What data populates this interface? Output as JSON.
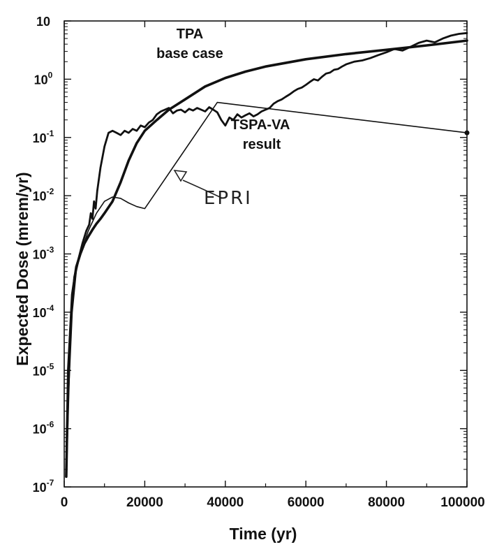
{
  "chart_data": {
    "type": "line",
    "title": "",
    "xlabel": "Time (yr)",
    "ylabel": "Expected Dose (mrem/yr)",
    "x_scale": "linear",
    "y_scale": "log",
    "xlim": [
      0,
      100000
    ],
    "ylim": [
      1e-07,
      10
    ],
    "x_ticks": [
      {
        "value": 0,
        "label": "0"
      },
      {
        "value": 20000,
        "label": "20000"
      },
      {
        "value": 40000,
        "label": "40000"
      },
      {
        "value": 60000,
        "label": "60000"
      },
      {
        "value": 80000,
        "label": "80000"
      },
      {
        "value": 100000,
        "label": "100000"
      }
    ],
    "y_ticks": [
      {
        "value": 1e-07,
        "base": "10",
        "exp": "-7"
      },
      {
        "value": 1e-06,
        "base": "10",
        "exp": "-6"
      },
      {
        "value": 1e-05,
        "base": "10",
        "exp": "-5"
      },
      {
        "value": 0.0001,
        "base": "10",
        "exp": "-4"
      },
      {
        "value": 0.001,
        "base": "10",
        "exp": "-3"
      },
      {
        "value": 0.01,
        "base": "10",
        "exp": "-2"
      },
      {
        "value": 0.1,
        "base": "10",
        "exp": "-1"
      },
      {
        "value": 1,
        "base": "10",
        "exp": "0"
      },
      {
        "value": 10,
        "base": "10",
        "exp": ""
      }
    ],
    "grid": false,
    "series": [
      {
        "name": "TPA base case",
        "color": "#111111",
        "x": [
          500,
          1000,
          2000,
          3000,
          4000,
          5000,
          6000,
          7000,
          8000,
          9000,
          10000,
          12000,
          14000,
          16000,
          18000,
          20000,
          23000,
          26000,
          30000,
          35000,
          40000,
          45000,
          50000,
          60000,
          70000,
          80000,
          90000,
          100000
        ],
        "y": [
          1.5e-07,
          1e-05,
          0.0002,
          0.0006,
          0.001,
          0.0015,
          0.002,
          0.0026,
          0.0033,
          0.004,
          0.005,
          0.008,
          0.017,
          0.04,
          0.08,
          0.13,
          0.2,
          0.3,
          0.45,
          0.75,
          1.05,
          1.35,
          1.65,
          2.2,
          2.7,
          3.2,
          3.8,
          4.6
        ]
      },
      {
        "name": "TSPA-VA result",
        "color": "#111111",
        "x": [
          500,
          1500,
          2500,
          3500,
          4500,
          5500,
          6200,
          6600,
          7000,
          7400,
          7800,
          8200,
          9000,
          10000,
          11000,
          12000,
          13000,
          14000,
          15000,
          16000,
          17000,
          18000,
          19000,
          20000,
          21000,
          22000,
          23000,
          24000,
          25000,
          26000,
          27000,
          28000,
          29000,
          30000,
          31000,
          32000,
          33000,
          34000,
          35000,
          36000,
          37000,
          38000,
          39000,
          40000,
          41000,
          42000,
          43000,
          44000,
          45000,
          46000,
          47000,
          48000,
          49000,
          50000,
          51000,
          52000,
          53000,
          54000,
          55000,
          56000,
          57000,
          58000,
          59000,
          60000,
          61000,
          62000,
          63000,
          64000,
          65000,
          66000,
          67000,
          68000,
          69000,
          70000,
          72000,
          74000,
          76000,
          78000,
          80000,
          82000,
          84000,
          86000,
          88000,
          90000,
          92000,
          94000,
          96000,
          98000,
          100000
        ],
        "y": [
          2e-07,
          5e-05,
          0.0004,
          0.0008,
          0.0015,
          0.0025,
          0.0032,
          0.005,
          0.004,
          0.008,
          0.006,
          0.012,
          0.03,
          0.07,
          0.12,
          0.13,
          0.12,
          0.11,
          0.13,
          0.12,
          0.14,
          0.13,
          0.16,
          0.15,
          0.18,
          0.2,
          0.25,
          0.28,
          0.3,
          0.32,
          0.26,
          0.29,
          0.3,
          0.27,
          0.31,
          0.29,
          0.32,
          0.3,
          0.28,
          0.33,
          0.3,
          0.27,
          0.2,
          0.16,
          0.22,
          0.2,
          0.25,
          0.22,
          0.24,
          0.26,
          0.23,
          0.25,
          0.28,
          0.3,
          0.32,
          0.38,
          0.42,
          0.45,
          0.5,
          0.55,
          0.62,
          0.68,
          0.72,
          0.8,
          0.9,
          1.0,
          0.95,
          1.1,
          1.25,
          1.3,
          1.45,
          1.5,
          1.65,
          1.8,
          2.0,
          2.1,
          2.3,
          2.6,
          2.9,
          3.3,
          3.1,
          3.6,
          4.2,
          4.6,
          4.3,
          5.0,
          5.6,
          6.0,
          6.2
        ]
      },
      {
        "name": "EPRI",
        "color": "#111111",
        "x": [
          500,
          1000,
          2000,
          3000,
          4000,
          6000,
          8000,
          10000,
          12000,
          14000,
          16000,
          18000,
          20000,
          38000,
          100000
        ],
        "y": [
          2e-07,
          3e-06,
          0.0001,
          0.0005,
          0.001,
          0.0025,
          0.005,
          0.008,
          0.0095,
          0.009,
          0.0075,
          0.0065,
          0.006,
          0.4,
          0.12
        ]
      }
    ],
    "annotations": [
      {
        "line1": "TPA",
        "line2": "base case"
      },
      {
        "line1": "TSPA-VA",
        "line2": "result"
      },
      {
        "text": "EPRI"
      }
    ]
  }
}
